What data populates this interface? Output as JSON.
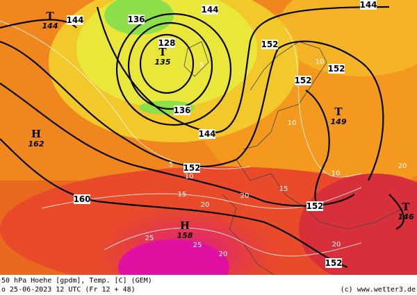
{
  "footer": {
    "line1": "50 hPa Hoehe [gpdm], Temp. [C] (GEM)",
    "line2": "o 25-06-2023 12 UTC (Fr 12 + 48)",
    "credit": "(c) www.wetter3.de"
  },
  "systems": [
    {
      "letter": "T",
      "value": "135"
    },
    {
      "letter": "T",
      "value": "144"
    },
    {
      "letter": "H",
      "value": "162"
    },
    {
      "letter": "H",
      "value": "158"
    },
    {
      "letter": "T",
      "value": "149"
    },
    {
      "letter": "T",
      "value": "146"
    }
  ],
  "height_labels": [
    "136",
    "144",
    "144",
    "144",
    "152",
    "152",
    "152",
    "136",
    "144",
    "152",
    "160",
    "152",
    "152",
    "128"
  ],
  "temp_labels": [
    "10",
    "10",
    "10",
    "15",
    "15",
    "20",
    "20",
    "25",
    "25",
    "20",
    "20",
    "5",
    "5",
    "10",
    "20",
    "25"
  ]
}
